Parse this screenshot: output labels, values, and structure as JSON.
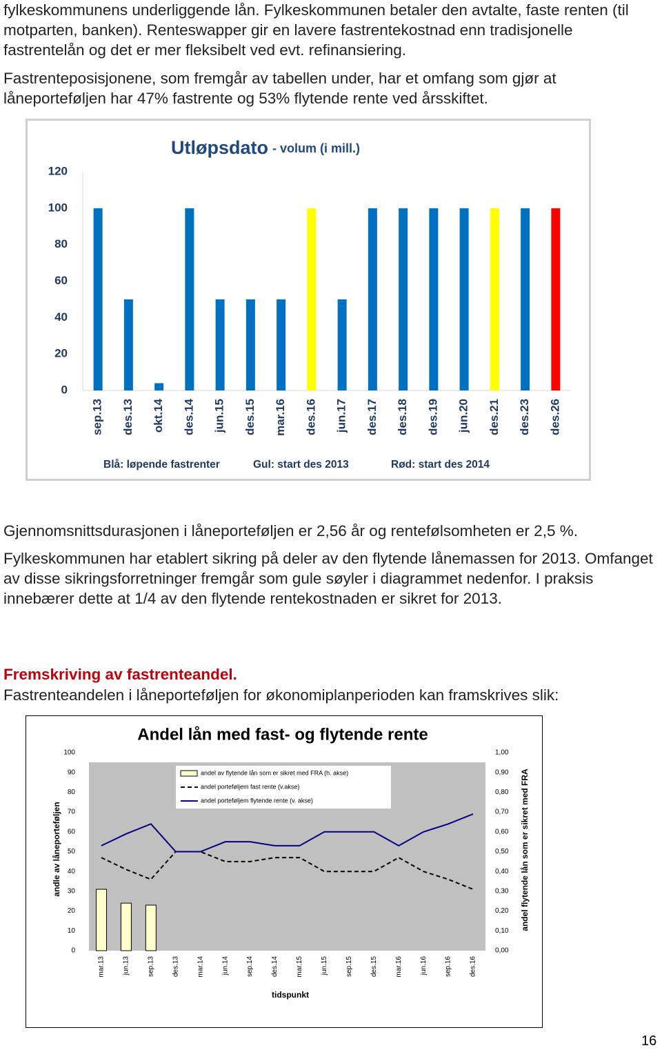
{
  "paragraphs": [
    "fylkeskommunens underliggende lån. Fylkeskommunen betaler den avtalte, faste renten (til motparten, banken). Renteswapper gir en lavere fastrentekostnad enn tradisjonelle fastrentelån og det er mer fleksibelt ved evt. refinansiering.",
    "Fastrenteposisjonene, som fremgår av tabellen under, har et omfang som gjør at låneporteføljen har 47% fastrente og 53% flytende rente ved årsskiftet.",
    "Gjennomsnittsdurasjonen i låneporteføljen er 2,56 år og rentefølsomheten er 2,5 %.",
    "Fylkeskommunen har etablert sikring på deler av den flytende lånemassen for 2013. Omfanget av disse sikringsforretninger fremgår som gule søyler i diagrammet nedenfor. I praksis innebærer dette at 1/4 av den flytende rentekostnaden er sikret for 2013.",
    "Fastrenteandelen i låneporteføljen for økonomiplanperioden kan framskrives slik:"
  ],
  "heading": "Fremskriving av fastrenteandel.",
  "page_number": 16,
  "chart_data": [
    {
      "type": "bar",
      "title": "Utløpsdato",
      "subtitle": "- volum (i mill.)",
      "categories": [
        "sep.13",
        "des.13",
        "okt.14",
        "des.14",
        "jun.15",
        "des.15",
        "mar.16",
        "des.16",
        "jun.17",
        "des.17",
        "des.18",
        "des.19",
        "jun.20",
        "des.21",
        "des.23",
        "des.26"
      ],
      "values": [
        100,
        50,
        4,
        100,
        50,
        50,
        50,
        100,
        50,
        100,
        100,
        100,
        100,
        100,
        100,
        100
      ],
      "colors": [
        "#0070c0",
        "#0070c0",
        "#0070c0",
        "#0070c0",
        "#0070c0",
        "#0070c0",
        "#0070c0",
        "#ffff00",
        "#0070c0",
        "#0070c0",
        "#0070c0",
        "#0070c0",
        "#0070c0",
        "#ffff00",
        "#0070c0",
        "#ff0000"
      ],
      "ylim": [
        0,
        120
      ],
      "yticks": [
        0,
        20,
        40,
        60,
        80,
        100,
        120
      ],
      "grid": false,
      "notes": [
        "Blå: løpende fastrenter",
        "Gul: start des 2013",
        "Rød: start des 2014"
      ]
    },
    {
      "type": "line",
      "title": "Andel lån med fast- og flytende rente",
      "xlabel": "tidspunkt",
      "ylabel": "andle av låneporteføljen",
      "y2label": "andel flytende lån som er sikret med FRA",
      "categories": [
        "mar.13",
        "jun.13",
        "sep.13",
        "des.13",
        "mar.14",
        "jun.14",
        "sep.14",
        "des.14",
        "mar.15",
        "jun.15",
        "sep.15",
        "des.15",
        "mar.16",
        "jun.16",
        "sep.16",
        "des.16"
      ],
      "series": [
        {
          "name": "andel av flytende lån som er sikret med FRA (h. akse)",
          "type": "bar",
          "axis": "y2",
          "color": "#ffffcc",
          "values": [
            0.31,
            0.24,
            0.23,
            null,
            null,
            null,
            null,
            null,
            null,
            null,
            null,
            null,
            null,
            null,
            null,
            null
          ]
        },
        {
          "name": "andel porteføljem fast rente (v.akse)",
          "type": "line",
          "dash": true,
          "color": "#000000",
          "values": [
            47,
            41,
            36,
            50,
            50,
            45,
            45,
            47,
            47,
            40,
            40,
            40,
            47,
            40,
            36,
            31
          ]
        },
        {
          "name": "andel porteføljem flytende rente (v. akse)",
          "type": "line",
          "dash": false,
          "color": "#000080",
          "values": [
            53,
            59,
            64,
            50,
            50,
            55,
            55,
            53,
            53,
            60,
            60,
            60,
            53,
            60,
            64,
            69
          ]
        }
      ],
      "ylim": [
        0,
        100
      ],
      "yticks": [
        0,
        10,
        20,
        30,
        40,
        50,
        60,
        70,
        80,
        90,
        100
      ],
      "y2lim": [
        0,
        1
      ],
      "y2ticks": [
        {
          "value": 0,
          "label": "0,00"
        },
        {
          "value": 0.1,
          "label": "0,10"
        },
        {
          "value": 0.2,
          "label": "0,20"
        },
        {
          "value": 0.3,
          "label": "0,30"
        },
        {
          "value": 0.4,
          "label": "0,40"
        },
        {
          "value": 0.5,
          "label": "0,50"
        },
        {
          "value": 0.6,
          "label": "0,60"
        },
        {
          "value": 0.7,
          "label": "0,70"
        },
        {
          "value": 0.8,
          "label": "0,80"
        },
        {
          "value": 0.9,
          "label": "0,90"
        },
        {
          "value": 1,
          "label": "1,00"
        }
      ]
    }
  ]
}
